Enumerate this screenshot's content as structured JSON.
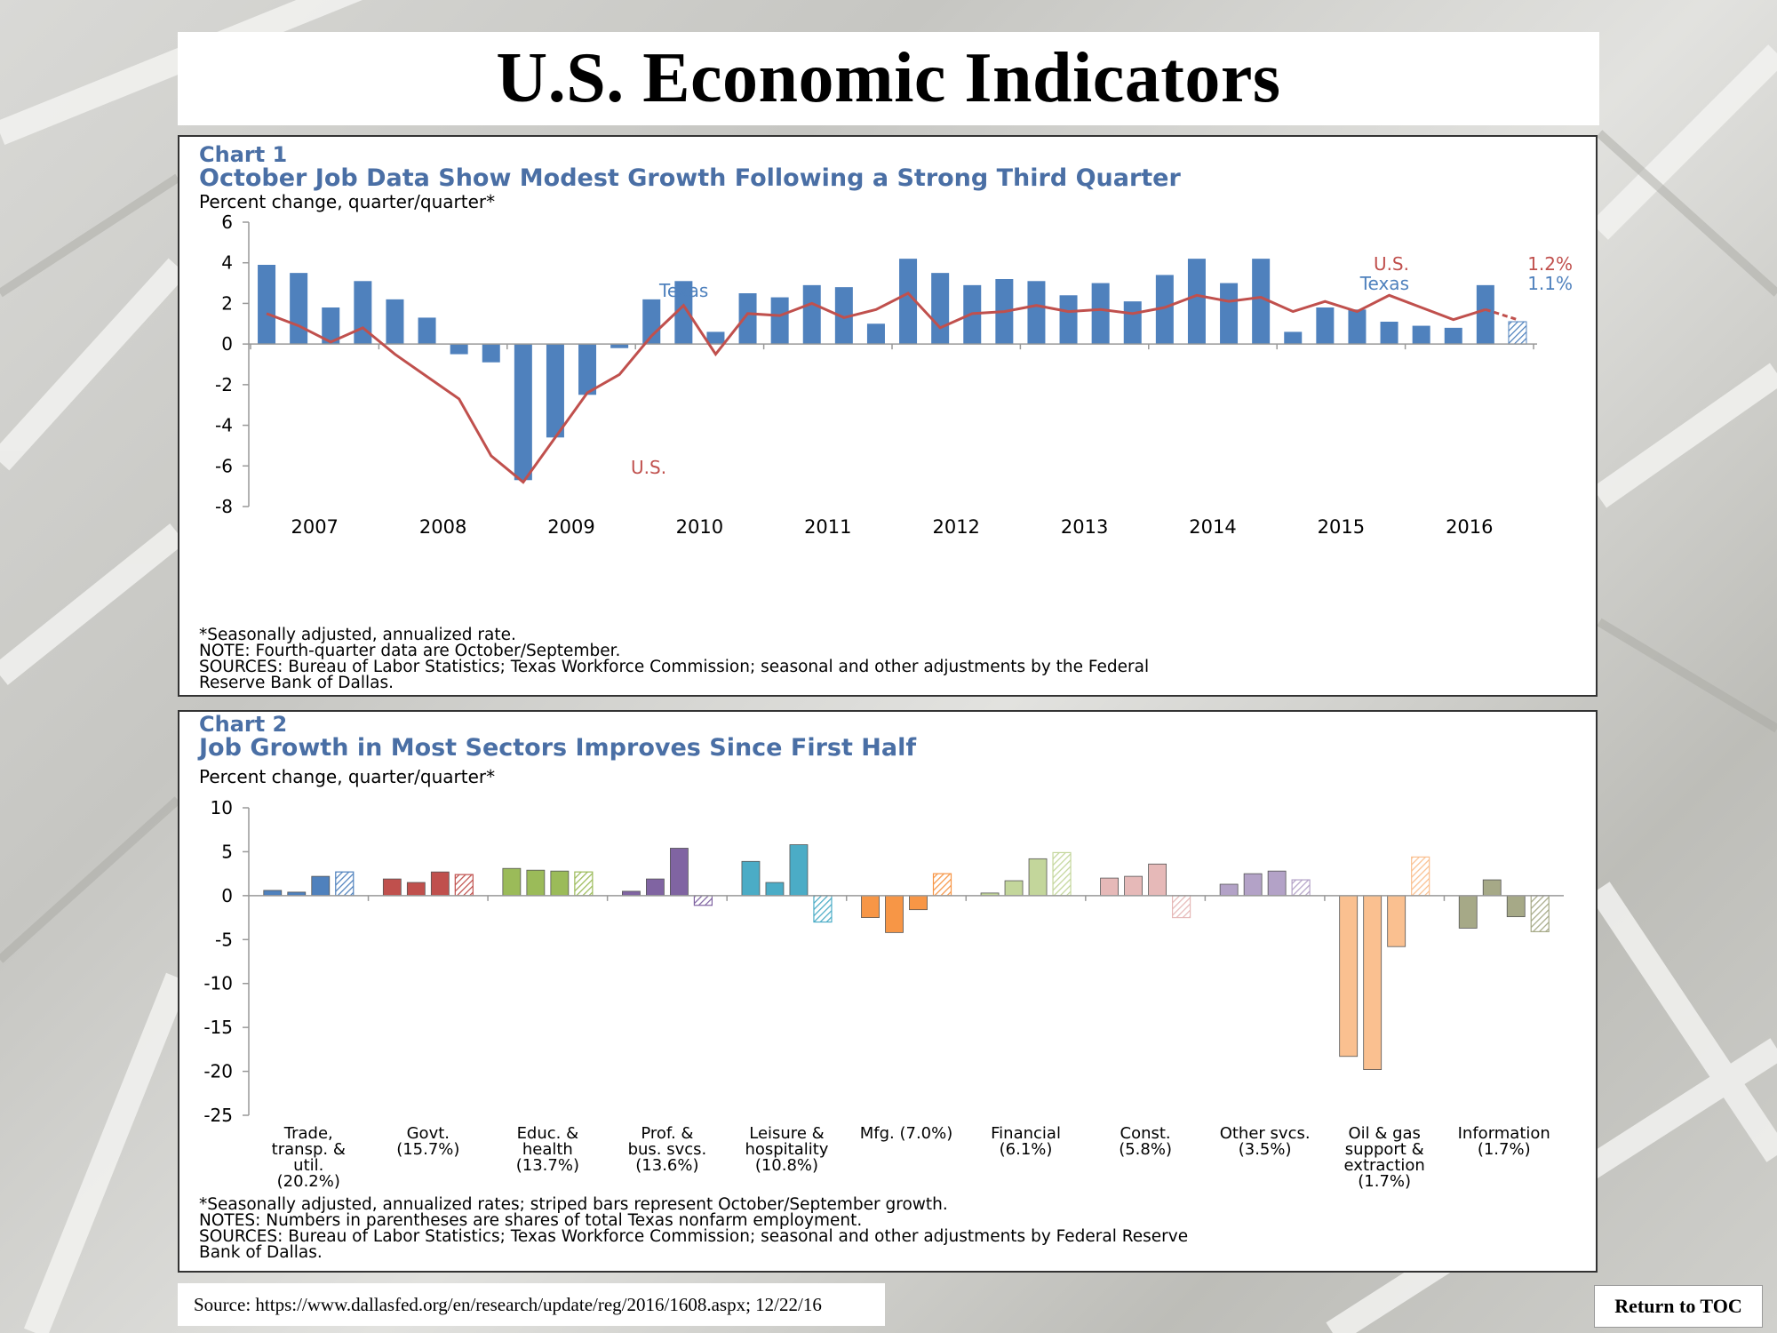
{
  "page_title": "U.S. Economic Indicators",
  "source_text": "Source: https://www.dallasfed.org/en/research/update/reg/2016/1608.aspx;  12/22/16",
  "toc_button": "Return to TOC",
  "chart1": {
    "number": "Chart 1",
    "title": "October Job Data Show Modest Growth Following a Strong Third Quarter",
    "units": "Percent change, quarter/quarter*",
    "notes": [
      "*Seasonally adjusted, annualized rate.",
      "NOTE: Fourth-quarter data are October/September.",
      "SOURCES: Bureau of Labor Statistics; Texas Workforce Commission; seasonal and other adjustments by the Federal",
      "Reserve Bank of Dallas."
    ],
    "label_texas": "Texas",
    "label_us": "U.S.",
    "legend": [
      {
        "name": "U.S.",
        "value": "1.2%",
        "color": "#c0504d"
      },
      {
        "name": "Texas",
        "value": "1.1%",
        "color": "#4f81bd"
      }
    ]
  },
  "chart2": {
    "number": "Chart 2",
    "title": "Job Growth in Most Sectors Improves Since First Half",
    "units": "Percent change, quarter/quarter*",
    "notes": [
      "*Seasonally adjusted, annualized rates; striped bars represent October/September growth.",
      "NOTES: Numbers in parentheses are shares of total Texas nonfarm employment.",
      "SOURCES: Bureau of Labor Statistics; Texas Workforce Commission; seasonal and other adjustments by Federal Reserve",
      "Bank of Dallas."
    ]
  },
  "chart_data": [
    {
      "type": "bar",
      "ylim": [
        -8,
        6
      ],
      "yticks": [
        6,
        4,
        2,
        0,
        -2,
        -4,
        -6,
        -8
      ],
      "x_ticks": [
        "2007",
        "2008",
        "2009",
        "2010",
        "2011",
        "2012",
        "2013",
        "2014",
        "2015",
        "2016"
      ],
      "series": [
        {
          "name": "Texas",
          "type": "bar",
          "color": "#4f81bd",
          "values": [
            3.9,
            3.5,
            1.8,
            3.1,
            2.2,
            1.3,
            -0.5,
            -0.9,
            -6.7,
            -4.6,
            -2.5,
            -0.2,
            2.2,
            3.1,
            0.6,
            2.5,
            2.3,
            2.9,
            2.8,
            1.0,
            4.2,
            3.5,
            2.9,
            3.2,
            3.1,
            2.4,
            3.0,
            2.1,
            3.4,
            4.2,
            3.0,
            4.2,
            0.6,
            1.8,
            1.7,
            1.1,
            0.9,
            0.8,
            2.9,
            1.1
          ],
          "last_striped": true
        },
        {
          "name": "U.S.",
          "type": "line",
          "color": "#c0504d",
          "values": [
            1.5,
            0.9,
            0.1,
            0.8,
            -0.5,
            -1.6,
            -2.7,
            -5.5,
            -6.8,
            -4.6,
            -2.4,
            -1.5,
            0.4,
            1.9,
            -0.5,
            1.5,
            1.4,
            2.0,
            1.3,
            1.7,
            2.5,
            0.8,
            1.5,
            1.6,
            1.9,
            1.6,
            1.7,
            1.5,
            1.8,
            2.4,
            2.1,
            2.3,
            1.6,
            2.1,
            1.6,
            2.4,
            1.8,
            1.2,
            1.7,
            1.2
          ],
          "last_dashed": true
        }
      ]
    },
    {
      "type": "bar",
      "ylim": [
        -25,
        10
      ],
      "yticks": [
        10,
        5,
        0,
        -5,
        -10,
        -15,
        -20,
        -25
      ],
      "categories": [
        "Trade, transp. & util. (20.2%)",
        "Govt. (15.7%)",
        "Educ. & health (13.7%)",
        "Prof. & bus. svcs. (13.6%)",
        "Leisure & hospitality (10.8%)",
        "Mfg. (7.0%)",
        "Financial (6.1%)",
        "Const. (5.8%)",
        "Other svcs. (3.5%)",
        "Oil & gas support & extraction (1.7%)",
        "Information (1.7%)"
      ],
      "category_lines": [
        [
          "Trade,",
          "transp. &",
          "util.",
          "(20.2%)"
        ],
        [
          "Govt.",
          "(15.7%)"
        ],
        [
          "Educ. &",
          "health",
          "(13.7%)"
        ],
        [
          "Prof. &",
          "bus. svcs.",
          "(13.6%)"
        ],
        [
          "Leisure &",
          "hospitality",
          "(10.8%)"
        ],
        [
          "Mfg. (7.0%)"
        ],
        [
          "Financial",
          "(6.1%)"
        ],
        [
          "Const.",
          "(5.8%)"
        ],
        [
          "Other svcs.",
          "(3.5%)"
        ],
        [
          "Oil & gas",
          "support &",
          "extraction",
          "(1.7%)"
        ],
        [
          "Information",
          "(1.7%)"
        ]
      ],
      "values": [
        [
          0.6,
          0.4,
          2.2,
          2.7
        ],
        [
          1.9,
          1.5,
          2.7,
          2.4
        ],
        [
          3.1,
          2.9,
          2.8,
          2.7
        ],
        [
          0.5,
          1.9,
          5.4,
          -1.1
        ],
        [
          3.9,
          1.5,
          5.8,
          -3.0
        ],
        [
          -2.5,
          -4.2,
          -1.6,
          2.5
        ],
        [
          0.3,
          1.7,
          4.2,
          4.9
        ],
        [
          2.0,
          2.2,
          3.6,
          -2.5
        ],
        [
          1.3,
          2.5,
          2.8,
          1.8
        ],
        [
          -18.3,
          -19.8,
          -5.8,
          4.4
        ],
        [
          -3.7,
          1.8,
          -2.4,
          -4.1
        ]
      ],
      "colors": [
        [
          "#4f81bd",
          "#4f81bd",
          "#4f81bd",
          "#4f81bd"
        ],
        [
          "#c0504d",
          "#c0504d",
          "#c0504d",
          "#c0504d"
        ],
        [
          "#9bbb59",
          "#9bbb59",
          "#9bbb59",
          "#9bbb59"
        ],
        [
          "#8064a2",
          "#8064a2",
          "#8064a2",
          "#8064a2"
        ],
        [
          "#4bacc6",
          "#4bacc6",
          "#4bacc6",
          "#4bacc6"
        ],
        [
          "#f79646",
          "#f79646",
          "#f79646",
          "#f79646"
        ],
        [
          "#c3d69b",
          "#c3d69b",
          "#c3d69b",
          "#c3d69b"
        ],
        [
          "#e6b9b8",
          "#e6b9b8",
          "#e6b9b8",
          "#e6b9b8"
        ],
        [
          "#b3a2c7",
          "#b3a2c7",
          "#b3a2c7",
          "#b3a2c7"
        ],
        [
          "#fac090",
          "#fac090",
          "#fac090",
          "#fac090"
        ],
        [
          "#a6a987",
          "#a6a987",
          "#a6a987",
          "#a6a987"
        ]
      ],
      "last_bar_striped": true
    }
  ]
}
